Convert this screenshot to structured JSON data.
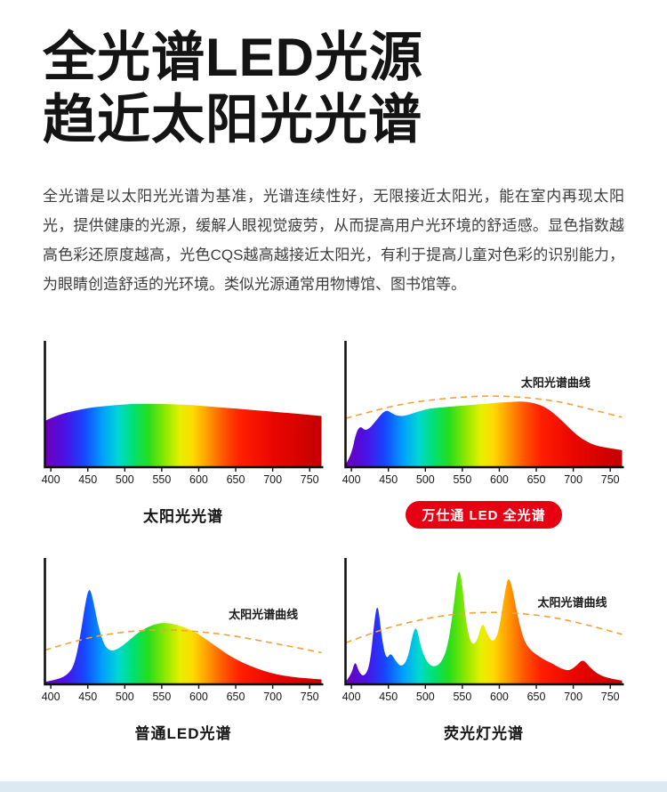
{
  "header": {
    "title_line1": "全光谱LED光源",
    "title_line2": "趋近太阳光光谱",
    "description": "全光谱是以太阳光光谱为基准，光谱连续性好，无限接近太阳光，能在室内再现太阳光，提供健康的光源，缓解人眼视觉疲劳，从而提高用户光环境的舒适感。显色指数越高色彩还原度越高，光色CQS越高越接近太阳光，有利于提高儿童对色彩的识别能力，为眼睛创造舒适的光环境。类似光源通常用物博馆、图书馆等。"
  },
  "colors": {
    "accent_red": "#e60012",
    "sun_curve": "#f5a03c",
    "axis": "#111111",
    "footer_strip": "#dce9f3"
  },
  "spectrum_gradient": [
    {
      "wl": 392,
      "color": "#6d00b8"
    },
    {
      "wl": 420,
      "color": "#4a12e6"
    },
    {
      "wl": 445,
      "color": "#1646ff"
    },
    {
      "wl": 470,
      "color": "#00a0ff"
    },
    {
      "wl": 492,
      "color": "#00d9d0"
    },
    {
      "wl": 512,
      "color": "#00e070"
    },
    {
      "wl": 532,
      "color": "#25dd1c"
    },
    {
      "wl": 555,
      "color": "#8fe800"
    },
    {
      "wl": 575,
      "color": "#e6f000"
    },
    {
      "wl": 592,
      "color": "#ffd900"
    },
    {
      "wl": 612,
      "color": "#ff9c00"
    },
    {
      "wl": 632,
      "color": "#ff5a00"
    },
    {
      "wl": 656,
      "color": "#ff1f00"
    },
    {
      "wl": 700,
      "color": "#ea0600"
    },
    {
      "wl": 766,
      "color": "#c40000"
    }
  ],
  "chart_data": [
    {
      "id": "sunlight",
      "type": "area",
      "title": "太阳光光谱",
      "title_style": "plain",
      "xlabel": "wavelength-nm",
      "x_ticks": [
        "400",
        "450",
        "500",
        "550",
        "600",
        "650",
        "700",
        "750"
      ],
      "x_range": [
        392,
        766
      ],
      "ylim": [
        0,
        1
      ],
      "points": [
        [
          392,
          0.38
        ],
        [
          410,
          0.43
        ],
        [
          430,
          0.46
        ],
        [
          450,
          0.485
        ],
        [
          470,
          0.5
        ],
        [
          490,
          0.51
        ],
        [
          510,
          0.52
        ],
        [
          530,
          0.52
        ],
        [
          550,
          0.52
        ],
        [
          570,
          0.515
        ],
        [
          590,
          0.51
        ],
        [
          610,
          0.5
        ],
        [
          630,
          0.49
        ],
        [
          650,
          0.48
        ],
        [
          670,
          0.47
        ],
        [
          690,
          0.46
        ],
        [
          710,
          0.45
        ],
        [
          730,
          0.44
        ],
        [
          766,
          0.42
        ]
      ],
      "sun_overlay": null
    },
    {
      "id": "wst-led-full",
      "type": "area",
      "title": "万仕通 LED 全光谱",
      "title_style": "red-pill",
      "xlabel": "wavelength-nm",
      "x_ticks": [
        "400",
        "450",
        "500",
        "550",
        "600",
        "650",
        "700",
        "750"
      ],
      "x_range": [
        392,
        766
      ],
      "ylim": [
        0,
        1
      ],
      "points": [
        [
          392,
          0.02
        ],
        [
          400,
          0.1
        ],
        [
          406,
          0.28
        ],
        [
          412,
          0.34
        ],
        [
          418,
          0.3
        ],
        [
          425,
          0.32
        ],
        [
          433,
          0.38
        ],
        [
          441,
          0.44
        ],
        [
          448,
          0.47
        ],
        [
          455,
          0.44
        ],
        [
          463,
          0.42
        ],
        [
          472,
          0.42
        ],
        [
          482,
          0.44
        ],
        [
          492,
          0.46
        ],
        [
          505,
          0.48
        ],
        [
          520,
          0.49
        ],
        [
          540,
          0.5
        ],
        [
          560,
          0.51
        ],
        [
          580,
          0.52
        ],
        [
          600,
          0.53
        ],
        [
          615,
          0.535
        ],
        [
          630,
          0.54
        ],
        [
          645,
          0.53
        ],
        [
          660,
          0.5
        ],
        [
          672,
          0.45
        ],
        [
          685,
          0.38
        ],
        [
          698,
          0.3
        ],
        [
          712,
          0.23
        ],
        [
          728,
          0.18
        ],
        [
          745,
          0.16
        ],
        [
          766,
          0.14
        ]
      ],
      "sun_overlay": {
        "label": "太阳光谱曲线",
        "label_pos": [
          0.76,
          0.34
        ],
        "points": [
          [
            392,
            0.4
          ],
          [
            440,
            0.48
          ],
          [
            480,
            0.53
          ],
          [
            520,
            0.56
          ],
          [
            560,
            0.58
          ],
          [
            600,
            0.585
          ],
          [
            640,
            0.57
          ],
          [
            680,
            0.54
          ],
          [
            720,
            0.48
          ],
          [
            766,
            0.41
          ]
        ]
      }
    },
    {
      "id": "ordinary-led",
      "type": "area",
      "title": "普通LED光谱",
      "title_style": "plain",
      "xlabel": "wavelength-nm",
      "x_ticks": [
        "400",
        "450",
        "500",
        "550",
        "600",
        "650",
        "700",
        "750"
      ],
      "x_range": [
        392,
        766
      ],
      "ylim": [
        0,
        1
      ],
      "points": [
        [
          392,
          0.02
        ],
        [
          410,
          0.04
        ],
        [
          423,
          0.08
        ],
        [
          432,
          0.16
        ],
        [
          440,
          0.4
        ],
        [
          447,
          0.68
        ],
        [
          452,
          0.8
        ],
        [
          457,
          0.7
        ],
        [
          464,
          0.48
        ],
        [
          472,
          0.32
        ],
        [
          481,
          0.27
        ],
        [
          491,
          0.29
        ],
        [
          504,
          0.35
        ],
        [
          517,
          0.42
        ],
        [
          531,
          0.47
        ],
        [
          545,
          0.5
        ],
        [
          557,
          0.505
        ],
        [
          570,
          0.49
        ],
        [
          584,
          0.46
        ],
        [
          598,
          0.42
        ],
        [
          612,
          0.36
        ],
        [
          626,
          0.3
        ],
        [
          640,
          0.24
        ],
        [
          655,
          0.19
        ],
        [
          670,
          0.15
        ],
        [
          688,
          0.11
        ],
        [
          706,
          0.08
        ],
        [
          726,
          0.06
        ],
        [
          745,
          0.05
        ],
        [
          766,
          0.04
        ]
      ],
      "sun_overlay": {
        "label": "太阳光谱曲线",
        "label_pos": [
          0.79,
          0.46
        ],
        "points": [
          [
            392,
            0.28
          ],
          [
            435,
            0.36
          ],
          [
            475,
            0.41
          ],
          [
            515,
            0.44
          ],
          [
            550,
            0.45
          ],
          [
            585,
            0.44
          ],
          [
            620,
            0.42
          ],
          [
            655,
            0.39
          ],
          [
            690,
            0.35
          ],
          [
            725,
            0.31
          ],
          [
            766,
            0.26
          ]
        ]
      }
    },
    {
      "id": "fluorescent",
      "type": "area",
      "title": "荧光灯光谱",
      "title_style": "plain",
      "xlabel": "wavelength-nm",
      "x_ticks": [
        "400",
        "450",
        "500",
        "550",
        "600",
        "650",
        "700",
        "750"
      ],
      "x_range": [
        392,
        766
      ],
      "ylim": [
        0,
        1
      ],
      "points": [
        [
          392,
          0.02
        ],
        [
          400,
          0.08
        ],
        [
          405,
          0.2
        ],
        [
          410,
          0.1
        ],
        [
          417,
          0.06
        ],
        [
          425,
          0.15
        ],
        [
          432,
          0.58
        ],
        [
          436,
          0.66
        ],
        [
          441,
          0.38
        ],
        [
          447,
          0.2
        ],
        [
          453,
          0.26
        ],
        [
          459,
          0.2
        ],
        [
          467,
          0.14
        ],
        [
          476,
          0.2
        ],
        [
          483,
          0.42
        ],
        [
          488,
          0.48
        ],
        [
          494,
          0.3
        ],
        [
          502,
          0.18
        ],
        [
          511,
          0.14
        ],
        [
          521,
          0.17
        ],
        [
          530,
          0.3
        ],
        [
          538,
          0.62
        ],
        [
          544,
          0.95
        ],
        [
          549,
          0.88
        ],
        [
          555,
          0.5
        ],
        [
          562,
          0.32
        ],
        [
          570,
          0.35
        ],
        [
          577,
          0.52
        ],
        [
          583,
          0.42
        ],
        [
          591,
          0.34
        ],
        [
          599,
          0.42
        ],
        [
          606,
          0.7
        ],
        [
          612,
          0.9
        ],
        [
          618,
          0.78
        ],
        [
          625,
          0.55
        ],
        [
          633,
          0.36
        ],
        [
          642,
          0.28
        ],
        [
          651,
          0.24
        ],
        [
          661,
          0.2
        ],
        [
          672,
          0.17
        ],
        [
          683,
          0.13
        ],
        [
          694,
          0.11
        ],
        [
          704,
          0.15
        ],
        [
          713,
          0.21
        ],
        [
          722,
          0.14
        ],
        [
          734,
          0.08
        ],
        [
          748,
          0.05
        ],
        [
          766,
          0.03
        ]
      ],
      "sun_overlay": {
        "label": "太阳光谱曲线",
        "label_pos": [
          0.82,
          0.36
        ],
        "points": [
          [
            392,
            0.34
          ],
          [
            440,
            0.45
          ],
          [
            485,
            0.52
          ],
          [
            530,
            0.57
          ],
          [
            570,
            0.59
          ],
          [
            610,
            0.59
          ],
          [
            650,
            0.57
          ],
          [
            690,
            0.53
          ],
          [
            730,
            0.47
          ],
          [
            766,
            0.41
          ]
        ]
      }
    }
  ]
}
